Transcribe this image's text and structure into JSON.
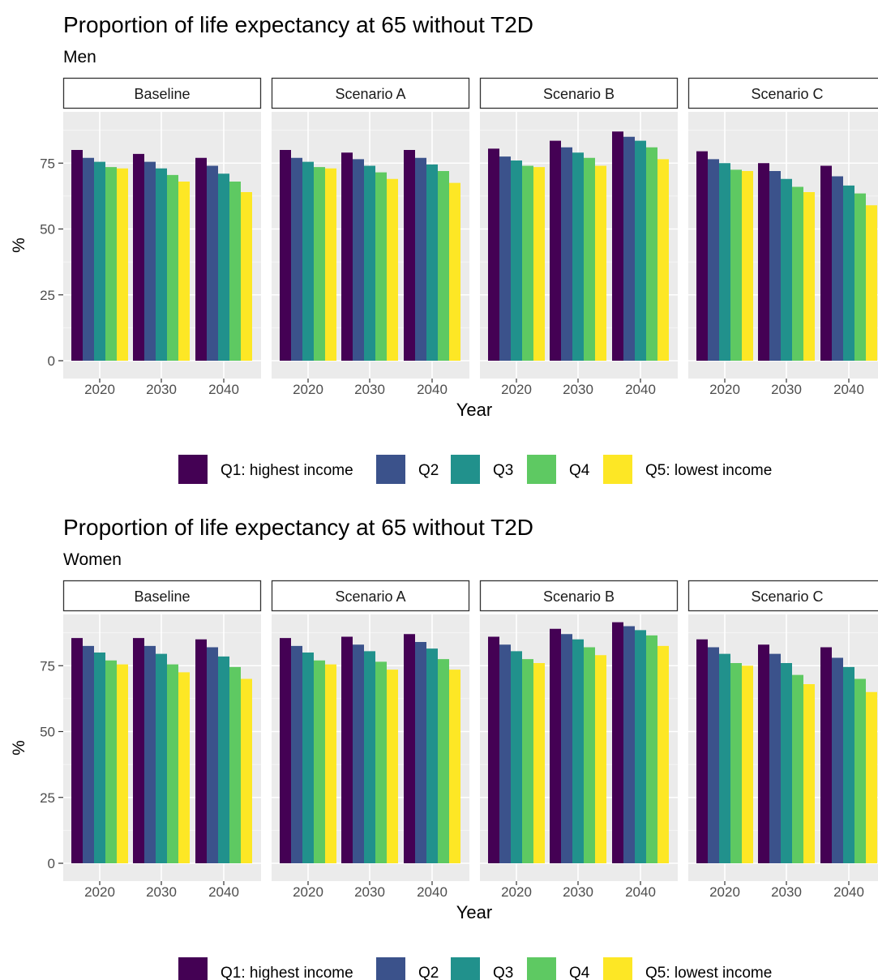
{
  "chart_data": [
    {
      "type": "bar",
      "title": "Proportion of life expectancy at 65 without T2D",
      "subtitle": "Men",
      "xlabel": "Year",
      "ylabel": "%",
      "ylim": [
        0,
        92
      ],
      "yticks": [
        0,
        25,
        50,
        75
      ],
      "grid": true,
      "legend_position": "bottom",
      "categories": [
        "2020",
        "2030",
        "2040"
      ],
      "series_names": [
        "Q1: highest income",
        "Q2",
        "Q3",
        "Q4",
        "Q5: lowest income"
      ],
      "colors": [
        "#440154",
        "#3b528b",
        "#21918c",
        "#5ec962",
        "#fde725"
      ],
      "panels": [
        {
          "name": "Baseline",
          "values": [
            [
              80,
              77,
              75.5,
              73.5,
              73
            ],
            [
              78.5,
              75.5,
              73,
              70.5,
              68
            ],
            [
              77,
              74,
              71,
              68,
              64
            ]
          ]
        },
        {
          "name": "Scenario A",
          "values": [
            [
              80,
              77,
              75.5,
              73.5,
              73
            ],
            [
              79,
              76.5,
              74,
              71.5,
              69
            ],
            [
              80,
              77,
              74.5,
              72,
              67.5
            ]
          ]
        },
        {
          "name": "Scenario B",
          "values": [
            [
              80.5,
              77.5,
              76,
              74,
              73.5
            ],
            [
              83.5,
              81,
              79,
              77,
              74
            ],
            [
              87,
              85,
              83.5,
              81,
              76.5
            ]
          ]
        },
        {
          "name": "Scenario C",
          "values": [
            [
              79.5,
              76.5,
              75,
              72.5,
              72
            ],
            [
              75,
              72,
              69,
              66,
              64
            ],
            [
              74,
              70,
              66.5,
              63.5,
              59
            ]
          ]
        }
      ]
    },
    {
      "type": "bar",
      "title": "Proportion of life expectancy at 65 without T2D",
      "subtitle": "Women",
      "xlabel": "Year",
      "ylabel": "%",
      "ylim": [
        0,
        92
      ],
      "yticks": [
        0,
        25,
        50,
        75
      ],
      "grid": true,
      "legend_position": "bottom",
      "categories": [
        "2020",
        "2030",
        "2040"
      ],
      "series_names": [
        "Q1: highest income",
        "Q2",
        "Q3",
        "Q4",
        "Q5: lowest income"
      ],
      "colors": [
        "#440154",
        "#3b528b",
        "#21918c",
        "#5ec962",
        "#fde725"
      ],
      "panels": [
        {
          "name": "Baseline",
          "values": [
            [
              85.5,
              82.5,
              80,
              77,
              75.5
            ],
            [
              85.5,
              82.5,
              79.5,
              75.5,
              72.5
            ],
            [
              85,
              82,
              78.5,
              74.5,
              70
            ]
          ]
        },
        {
          "name": "Scenario A",
          "values": [
            [
              85.5,
              82.5,
              80,
              77,
              75.5
            ],
            [
              86,
              83,
              80.5,
              76.5,
              73.5
            ],
            [
              87,
              84,
              81.5,
              77.5,
              73.5
            ]
          ]
        },
        {
          "name": "Scenario B",
          "values": [
            [
              86,
              83,
              80.5,
              77.5,
              76
            ],
            [
              89,
              87,
              85,
              82,
              79
            ],
            [
              91.5,
              90,
              88.5,
              86.5,
              82.5
            ]
          ]
        },
        {
          "name": "Scenario C",
          "values": [
            [
              85,
              82,
              79.5,
              76,
              75
            ],
            [
              83,
              79.5,
              76,
              71.5,
              68
            ],
            [
              82,
              78,
              74.5,
              70,
              65
            ]
          ]
        }
      ]
    }
  ]
}
